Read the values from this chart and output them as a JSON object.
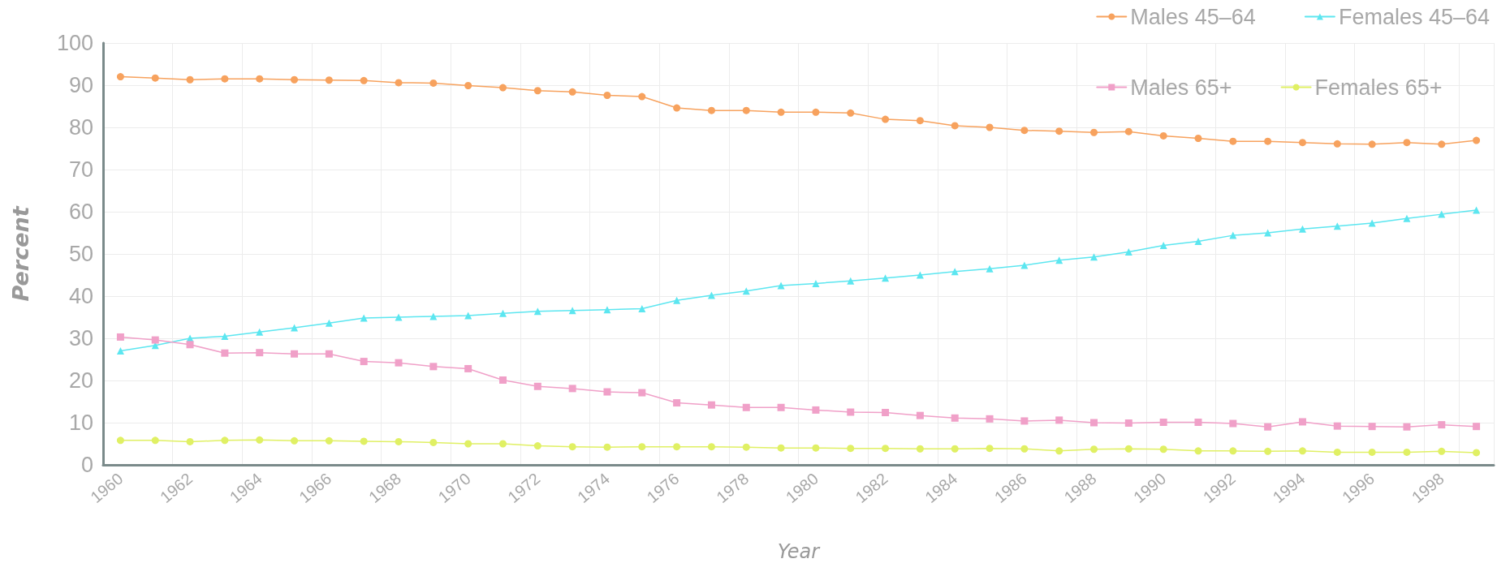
{
  "chart_data": {
    "type": "line",
    "xlabel": "Year",
    "ylabel": "Percent",
    "categories": [
      "1960",
      null,
      "1962",
      null,
      "1964",
      null,
      "1966",
      null,
      "1968",
      null,
      "1970",
      null,
      "1972",
      null,
      "1974",
      null,
      "1976",
      null,
      "1978",
      null,
      "1980",
      null,
      "1982",
      null,
      "1984",
      null,
      "1986",
      null,
      "1988",
      null,
      "1990",
      null,
      "1992",
      null,
      "1994",
      null,
      "1996",
      null,
      "1998",
      null
    ],
    "series": [
      {
        "name": "Males 45–64",
        "color": "#f7a25e",
        "marker": "circle",
        "values": [
          92,
          91.7,
          91.3,
          91.5,
          91.5,
          91.3,
          91.2,
          91.1,
          90.6,
          90.5,
          89.9,
          89.4,
          88.7,
          88.4,
          87.6,
          87.3,
          84.6,
          84,
          84,
          83.6,
          83.6,
          83.4,
          81.9,
          81.6,
          80.4,
          80,
          79.3,
          79.1,
          78.8,
          79,
          78,
          77.4,
          76.7,
          76.7,
          76.4,
          76.1,
          76,
          76.4,
          76,
          76.9
        ]
      },
      {
        "name": "Females 45–64",
        "color": "#5ce6f0",
        "marker": "triangle",
        "values": [
          27,
          28.3,
          30,
          30.5,
          31.5,
          32.5,
          33.6,
          34.8,
          35,
          35.2,
          35.4,
          35.9,
          36.4,
          36.6,
          36.8,
          37,
          39,
          40.2,
          41.2,
          42.5,
          43,
          43.6,
          44.3,
          45,
          45.8,
          46.5,
          47.3,
          48.5,
          49.3,
          50.5,
          52,
          53,
          54.4,
          55,
          55.9,
          56.6,
          57.3,
          58.4,
          59.4,
          60.4
        ]
      },
      {
        "name": "Males 65+",
        "color": "#f0a0c8",
        "marker": "square",
        "values": [
          30.3,
          29.6,
          28.5,
          26.5,
          26.6,
          26.3,
          26.3,
          24.5,
          24.2,
          23.3,
          22.8,
          20.1,
          18.6,
          18.1,
          17.3,
          17.1,
          14.7,
          14.2,
          13.6,
          13.6,
          13,
          12.5,
          12.4,
          11.7,
          11.1,
          10.9,
          10.4,
          10.6,
          10,
          9.9,
          10.1,
          10.1,
          9.8,
          9,
          10.2,
          9.2,
          9.1,
          9,
          9.5,
          9.1
        ]
      },
      {
        "name": "Females 65+",
        "color": "#e0f064",
        "marker": "circle",
        "values": [
          5.8,
          5.8,
          5.5,
          5.8,
          5.9,
          5.7,
          5.7,
          5.6,
          5.5,
          5.3,
          5,
          5,
          4.5,
          4.3,
          4.2,
          4.3,
          4.3,
          4.3,
          4.2,
          4,
          4,
          3.9,
          3.9,
          3.8,
          3.8,
          3.9,
          3.8,
          3.3,
          3.7,
          3.8,
          3.7,
          3.3,
          3.3,
          3.2,
          3.3,
          3,
          3,
          3,
          3.2,
          2.9
        ]
      }
    ],
    "ylim": [
      0,
      100
    ],
    "yticks": [
      0,
      10,
      20,
      30,
      40,
      50,
      60,
      70,
      80,
      90,
      100
    ],
    "grid": true,
    "legend": "top right",
    "line_style": "solid"
  }
}
